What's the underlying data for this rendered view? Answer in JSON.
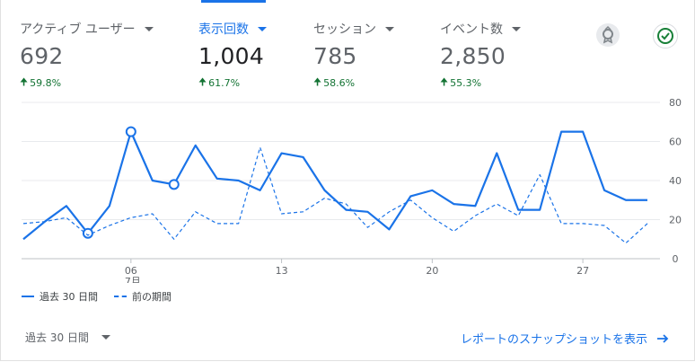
{
  "metrics": [
    {
      "label": "アクティブ ユーザー",
      "value": "692",
      "change": "59.8%"
    },
    {
      "label": "表示回数",
      "value": "1,004",
      "change": "61.7%"
    },
    {
      "label": "セッション",
      "value": "785",
      "change": "58.6%"
    },
    {
      "label": "イベント数",
      "value": "2,850",
      "change": "55.3%"
    }
  ],
  "legend": {
    "current": "過去 30 日間",
    "previous": "前の期間"
  },
  "footer": {
    "date_range": "過去 30 日間",
    "snapshot_link": "レポートのスナップショットを表示"
  },
  "colors": {
    "accent": "#1a73e8",
    "positive": "#137333",
    "grid": "#e8eaed"
  },
  "icons": [
    "insights-icon",
    "check-circle-icon",
    "arrow-up-icon",
    "arrow-right-icon",
    "caret-down-icon"
  ],
  "chart_data": {
    "type": "line",
    "x": [
      1,
      2,
      3,
      4,
      5,
      6,
      7,
      8,
      9,
      10,
      11,
      12,
      13,
      14,
      15,
      16,
      17,
      18,
      19,
      20,
      21,
      22,
      23,
      24,
      25,
      26,
      27,
      28,
      29,
      30
    ],
    "xticks": [
      {
        "x": 6,
        "label": "06",
        "sublabel": "7月"
      },
      {
        "x": 13,
        "label": "13"
      },
      {
        "x": 20,
        "label": "20"
      },
      {
        "x": 27,
        "label": "27"
      }
    ],
    "ylim": [
      0,
      80
    ],
    "yticks": [
      "0",
      "20",
      "40",
      "60",
      "80"
    ],
    "y_axis_side": "right",
    "grid": true,
    "legend_position": "bottom-left",
    "series": [
      {
        "name": "過去 30 日間",
        "style": "solid",
        "values": [
          10,
          19,
          27,
          13,
          27,
          65,
          40,
          38,
          58,
          41,
          40,
          35,
          54,
          52,
          35,
          25,
          24,
          15,
          32,
          35,
          28,
          27,
          54,
          25,
          25,
          65,
          65,
          35,
          30,
          30
        ],
        "markers": [
          4,
          6,
          8
        ]
      },
      {
        "name": "前の期間",
        "style": "dashed",
        "values": [
          18,
          19,
          21,
          12,
          17,
          21,
          23,
          10,
          24,
          18,
          18,
          57,
          23,
          24,
          31,
          28,
          16,
          24,
          30,
          21,
          14,
          22,
          28,
          22,
          43,
          18,
          18,
          17,
          8,
          18
        ]
      }
    ]
  }
}
